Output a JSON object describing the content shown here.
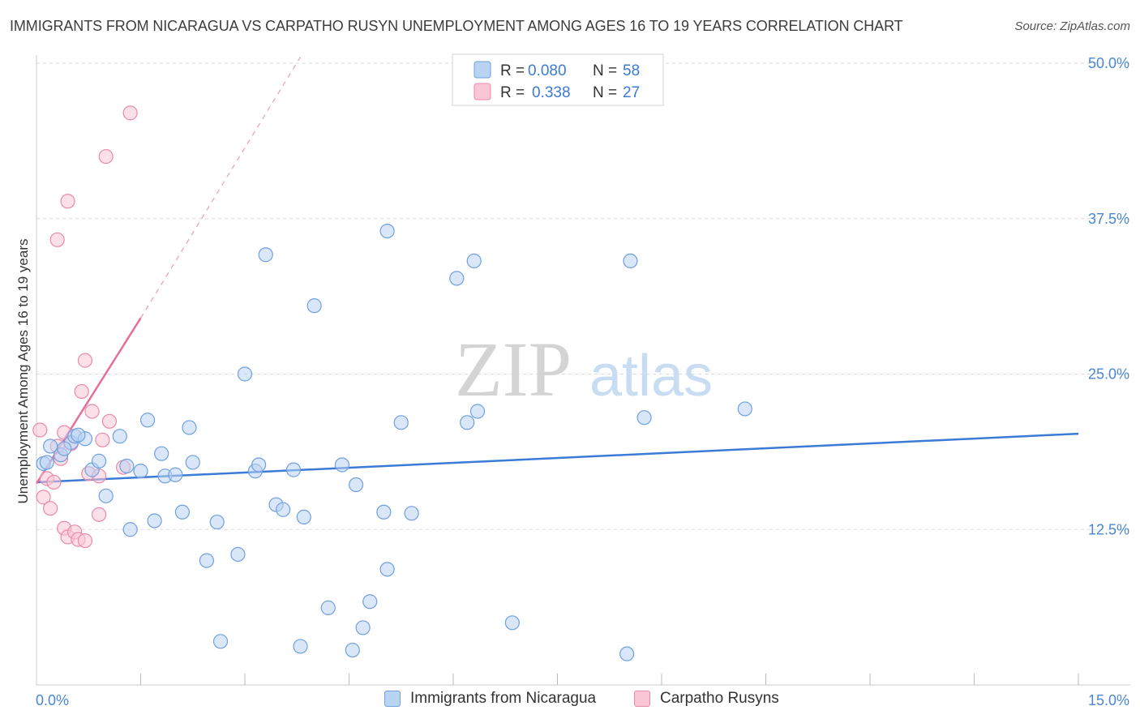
{
  "title": "IMMIGRANTS FROM NICARAGUA VS CARPATHO RUSYN UNEMPLOYMENT AMONG AGES 16 TO 19 YEARS CORRELATION CHART",
  "source": "Source: ZipAtlas.com",
  "watermark": {
    "zip": "ZIP",
    "atlas": "atlas"
  },
  "colors": {
    "blue_fill": "#b9d3f3",
    "blue_stroke": "#6fa0df",
    "blue_line": "#3a7bd5",
    "pink_fill": "#f9c6d6",
    "pink_stroke": "#ea8aab",
    "pink_line": "#e4709a",
    "axis_text": "#4a86d4",
    "grid": "#d9d9d9"
  },
  "legend": {
    "rows": [
      {
        "r_label": "R =",
        "r_value": "0.080",
        "n_label": "N =",
        "n_value": "58"
      },
      {
        "r_label": "R =",
        "r_value": "0.338",
        "n_label": "N =",
        "n_value": "27"
      }
    ]
  },
  "chart_data": {
    "type": "scatter",
    "xlabel": "",
    "ylabel": "Unemployment Among Ages 16 to 19 years",
    "xlim": [
      0,
      15
    ],
    "ylim": [
      0,
      50
    ],
    "x_tick_labels": [
      {
        "value": 0,
        "label": "0.0%"
      },
      {
        "value": 15,
        "label": "15.0%"
      }
    ],
    "y_tick_labels": [
      {
        "value": 12.5,
        "label": "12.5%"
      },
      {
        "value": 25,
        "label": "25.0%"
      },
      {
        "value": 37.5,
        "label": "37.5%"
      },
      {
        "value": 50,
        "label": "50.0%"
      }
    ],
    "series": [
      {
        "name": "Immigrants from Nicaragua",
        "color": "blue",
        "trend": {
          "x": [
            0,
            15
          ],
          "y": [
            16.3,
            20.2
          ]
        },
        "points": [
          [
            0.1,
            17.8
          ],
          [
            0.2,
            19.2
          ],
          [
            0.35,
            18.5
          ],
          [
            0.5,
            19.5
          ],
          [
            0.55,
            20.0
          ],
          [
            0.7,
            19.8
          ],
          [
            0.8,
            17.3
          ],
          [
            0.9,
            18.0
          ],
          [
            1.0,
            15.2
          ],
          [
            1.2,
            20.0
          ],
          [
            1.3,
            17.6
          ],
          [
            1.35,
            12.5
          ],
          [
            1.5,
            17.2
          ],
          [
            1.6,
            21.3
          ],
          [
            1.7,
            13.2
          ],
          [
            1.8,
            18.6
          ],
          [
            1.85,
            16.8
          ],
          [
            2.0,
            16.9
          ],
          [
            2.1,
            13.9
          ],
          [
            2.2,
            20.7
          ],
          [
            2.25,
            17.9
          ],
          [
            2.45,
            10.0
          ],
          [
            2.6,
            13.1
          ],
          [
            2.65,
            3.5
          ],
          [
            2.9,
            10.5
          ],
          [
            3.0,
            25.0
          ],
          [
            3.15,
            17.2
          ],
          [
            3.2,
            17.7
          ],
          [
            3.3,
            34.6
          ],
          [
            3.45,
            14.5
          ],
          [
            3.55,
            14.1
          ],
          [
            3.7,
            17.3
          ],
          [
            3.8,
            3.1
          ],
          [
            3.85,
            13.5
          ],
          [
            4.0,
            30.5
          ],
          [
            4.2,
            6.2
          ],
          [
            4.4,
            17.7
          ],
          [
            4.55,
            2.8
          ],
          [
            4.6,
            16.1
          ],
          [
            4.7,
            4.6
          ],
          [
            4.8,
            6.7
          ],
          [
            5.0,
            13.9
          ],
          [
            5.05,
            36.5
          ],
          [
            5.05,
            9.3
          ],
          [
            5.25,
            21.1
          ],
          [
            5.4,
            13.8
          ],
          [
            6.05,
            32.7
          ],
          [
            6.2,
            21.1
          ],
          [
            6.3,
            34.1
          ],
          [
            6.35,
            22.0
          ],
          [
            6.85,
            5.0
          ],
          [
            8.5,
            2.5
          ],
          [
            8.55,
            34.1
          ],
          [
            8.75,
            21.5
          ],
          [
            10.2,
            22.2
          ],
          [
            0.15,
            17.9
          ],
          [
            0.4,
            19.0
          ],
          [
            0.6,
            20.1
          ]
        ]
      },
      {
        "name": "Carpatho Rusyns",
        "color": "pink",
        "trend": {
          "x": [
            0,
            1.5
          ],
          "y": [
            16.2,
            29.5
          ]
        },
        "trend_dashed": {
          "x": [
            1.5,
            3.8
          ],
          "y": [
            29.5,
            50.5
          ]
        },
        "points": [
          [
            0.05,
            20.5
          ],
          [
            0.1,
            15.1
          ],
          [
            0.15,
            16.6
          ],
          [
            0.2,
            14.2
          ],
          [
            0.25,
            16.3
          ],
          [
            0.3,
            19.2
          ],
          [
            0.3,
            35.8
          ],
          [
            0.35,
            18.2
          ],
          [
            0.4,
            20.3
          ],
          [
            0.4,
            12.6
          ],
          [
            0.45,
            38.9
          ],
          [
            0.45,
            11.9
          ],
          [
            0.5,
            19.4
          ],
          [
            0.55,
            12.3
          ],
          [
            0.6,
            11.7
          ],
          [
            0.65,
            23.6
          ],
          [
            0.7,
            26.1
          ],
          [
            0.7,
            11.6
          ],
          [
            0.75,
            17.0
          ],
          [
            0.8,
            22.0
          ],
          [
            0.9,
            16.8
          ],
          [
            0.9,
            13.7
          ],
          [
            0.95,
            19.7
          ],
          [
            1.0,
            42.5
          ],
          [
            1.05,
            21.2
          ],
          [
            1.25,
            17.5
          ],
          [
            1.35,
            46.0
          ]
        ]
      }
    ]
  }
}
